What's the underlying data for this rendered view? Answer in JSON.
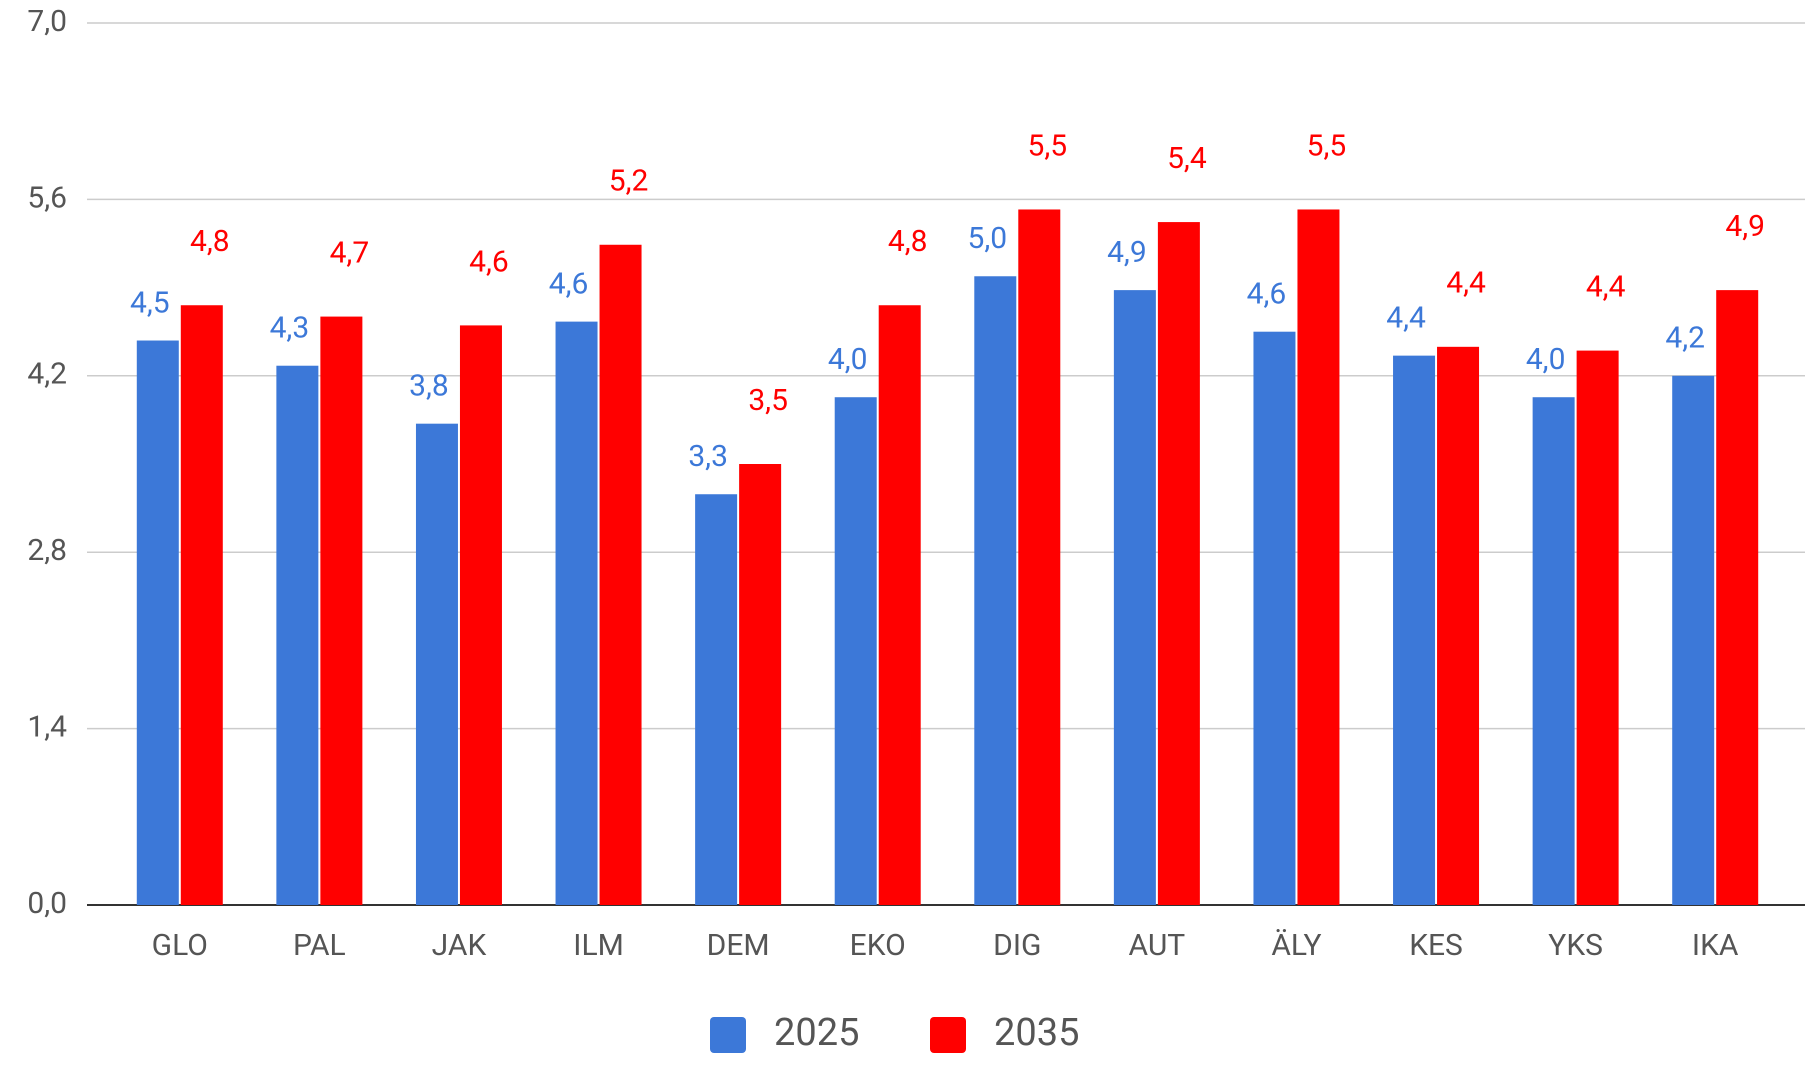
{
  "chart_data": {
    "type": "bar",
    "categories": [
      "GLO",
      "PAL",
      "JAK",
      "ILM",
      "DEM",
      "EKO",
      "DIG",
      "AUT",
      "ÄLY",
      "KES",
      "YKS",
      "IKA"
    ],
    "series": [
      {
        "name": "2025",
        "color": "#3c78d8",
        "values": [
          4.48,
          4.28,
          3.82,
          4.63,
          3.26,
          4.03,
          4.99,
          4.88,
          4.55,
          4.36,
          4.03,
          4.2
        ],
        "value_labels": [
          "4,5",
          "4,3",
          "3,8",
          "4,6",
          "3,3",
          "4,0",
          "5,0",
          "4,9",
          "4,6",
          "4,4",
          "4,0",
          "4,2"
        ]
      },
      {
        "name": "2035",
        "color": "#ff0000",
        "values": [
          4.76,
          4.67,
          4.6,
          5.24,
          3.5,
          4.76,
          5.52,
          5.42,
          5.52,
          4.43,
          4.4,
          4.88
        ],
        "value_labels": [
          "4,8",
          "4,7",
          "4,6",
          "5,2",
          "3,5",
          "4,8",
          "5,5",
          "5,4",
          "5,5",
          "4,4",
          "4,4",
          "4,9"
        ]
      }
    ],
    "ylim": [
      0,
      7
    ],
    "yticks": [
      {
        "value": 0,
        "label": "0,0"
      },
      {
        "value": 1.4,
        "label": "1,4"
      },
      {
        "value": 2.8,
        "label": "2,8"
      },
      {
        "value": 4.2,
        "label": "4,2"
      },
      {
        "value": 5.6,
        "label": "5,6"
      },
      {
        "value": 7,
        "label": "7,0"
      }
    ],
    "grid": true,
    "legend": "bottom"
  }
}
